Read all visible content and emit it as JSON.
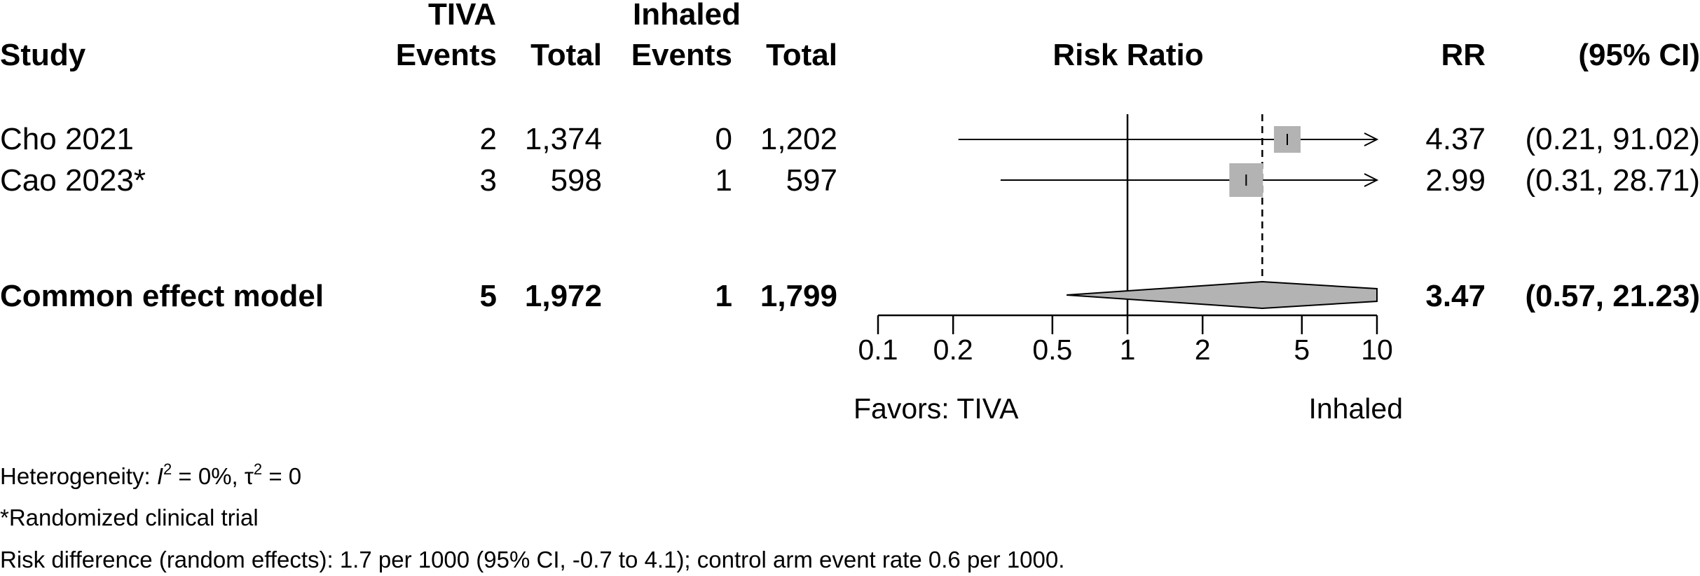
{
  "chart_data": {
    "type": "forest",
    "measure": "Risk Ratio",
    "scale": "log",
    "xlim": [
      0.1,
      10
    ],
    "ticks": [
      0.1,
      0.2,
      0.5,
      1,
      2,
      5,
      10
    ],
    "tick_labels": [
      "0.1",
      "0.2",
      "0.5",
      "1",
      "2",
      "5",
      "10"
    ],
    "null_value": 1,
    "favors_left": "Favors: TIVA",
    "favors_right": "Inhaled",
    "headers": {
      "group1": "TIVA",
      "group2": "Inhaled",
      "study": "Study",
      "events1": "Events",
      "total1": "Total",
      "events2": "Events",
      "total2": "Total",
      "plot": "Risk Ratio",
      "rr": "RR",
      "ci": "(95% CI)"
    },
    "studies": [
      {
        "name": "Cho 2021",
        "events1": "2",
        "total1": "1,374",
        "events2": "0",
        "total2": "1,202",
        "rr": 4.37,
        "lo": 0.21,
        "hi": 91.02,
        "rr_text": "4.37",
        "ci_text": "(0.21, 91.02)"
      },
      {
        "name": "Cao 2023*",
        "events1": "3",
        "total1": "598",
        "events2": "1",
        "total2": "597",
        "rr": 2.99,
        "lo": 0.31,
        "hi": 28.71,
        "rr_text": "2.99",
        "ci_text": "(0.31, 28.71)"
      }
    ],
    "pooled": {
      "name": "Common effect model",
      "events1": "5",
      "total1": "1,972",
      "events2": "1",
      "total2": "1,799",
      "rr": 3.47,
      "lo": 0.57,
      "hi": 21.23,
      "rr_text": "3.47",
      "ci_text": "(0.57, 21.23)"
    }
  },
  "footnotes": {
    "heterogeneity_prefix": "Heterogeneity: ",
    "i2_symbol": "I",
    "i2_sup": "2",
    "i2_value": " = 0%, ",
    "tau_symbol": "τ",
    "tau_sup": "2",
    "tau_value": " = 0",
    "rct_note": "*Randomized clinical trial",
    "risk_difference": "Risk difference (random effects): 1.7 per 1000 (95% CI, -0.7 to 4.1); control arm event rate 0.6 per 1000."
  }
}
